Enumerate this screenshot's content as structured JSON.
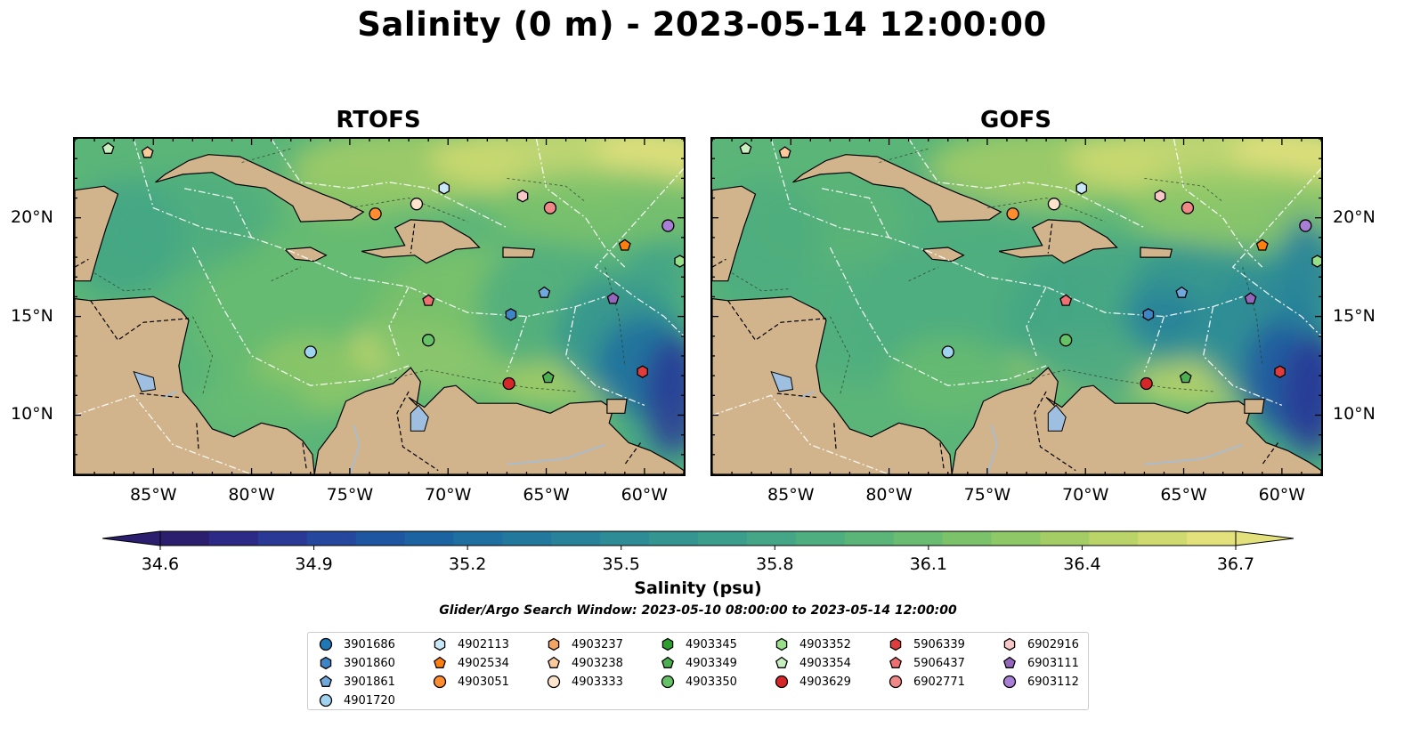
{
  "title": "Salinity (0 m) - 2023-05-14 12:00:00",
  "panels": [
    {
      "title": "RTOFS",
      "side": "left"
    },
    {
      "title": "GOFS",
      "side": "right"
    }
  ],
  "map": {
    "lon_range": [
      -89,
      -58
    ],
    "lat_range": [
      7,
      24
    ],
    "lat_ticks": [
      {
        "lat": 10,
        "label": "10°N"
      },
      {
        "lat": 15,
        "label": "15°N"
      },
      {
        "lat": 20,
        "label": "20°N"
      }
    ],
    "lon_ticks": [
      {
        "lon": -85,
        "label": "85°W"
      },
      {
        "lon": -80,
        "label": "80°W"
      },
      {
        "lon": -75,
        "label": "75°W"
      },
      {
        "lon": -70,
        "label": "70°W"
      },
      {
        "lon": -65,
        "label": "65°W"
      },
      {
        "lon": -60,
        "label": "60°W"
      }
    ],
    "land_color": "#d2b48c",
    "lake_color": "#9fbfe0"
  },
  "colorbar": {
    "label": "Salinity (psu)",
    "min": 34.6,
    "max": 36.7,
    "ticks": [
      "34.6",
      "34.9",
      "35.2",
      "35.5",
      "35.8",
      "36.1",
      "36.4",
      "36.7"
    ],
    "colors": [
      "#2b1e6e",
      "#2c2a86",
      "#2a3896",
      "#26479e",
      "#1f56a1",
      "#1c63a2",
      "#1f6fa0",
      "#23799d",
      "#28839a",
      "#2e8c96",
      "#349591",
      "#3b9e8c",
      "#44a686",
      "#4fae7f",
      "#5bb578",
      "#69bc71",
      "#7bc26b",
      "#8fc867",
      "#a4cd66",
      "#bad469",
      "#cfdb71",
      "#e2e17c"
    ],
    "extend": "both"
  },
  "search_window": "Glider/Argo Search Window: 2023-05-10 08:00:00 to 2023-05-14 12:00:00",
  "legend": {
    "columns": [
      [
        {
          "id": "3901686",
          "marker": "circle",
          "color": "#1f77b4"
        },
        {
          "id": "3901860",
          "marker": "hexagon",
          "color": "#3d85c6"
        },
        {
          "id": "3901861",
          "marker": "pentagon",
          "color": "#6fa8dc"
        },
        {
          "id": "4901720",
          "marker": "circle",
          "color": "#9fd3f0"
        }
      ],
      [
        {
          "id": "4902113",
          "marker": "hexagon",
          "color": "#c9e8f7"
        },
        {
          "id": "4902534",
          "marker": "pentagon",
          "color": "#ff7f0e"
        },
        {
          "id": "4903051",
          "marker": "circle",
          "color": "#ff8c2e"
        }
      ],
      [
        {
          "id": "4903237",
          "marker": "hexagon",
          "color": "#f4a460"
        },
        {
          "id": "4903238",
          "marker": "pentagon",
          "color": "#fcc99a"
        },
        {
          "id": "4903333",
          "marker": "circle",
          "color": "#fde4cc"
        }
      ],
      [
        {
          "id": "4903345",
          "marker": "hexagon",
          "color": "#2ca02c"
        },
        {
          "id": "4903349",
          "marker": "pentagon",
          "color": "#4caf50"
        },
        {
          "id": "4903350",
          "marker": "circle",
          "color": "#66c266"
        }
      ],
      [
        {
          "id": "4903352",
          "marker": "hexagon",
          "color": "#98df8a"
        },
        {
          "id": "4903354",
          "marker": "pentagon",
          "color": "#c9efc0"
        },
        {
          "id": "4903629",
          "marker": "circle",
          "color": "#d62728"
        }
      ],
      [
        {
          "id": "5906339",
          "marker": "hexagon",
          "color": "#e03c3c"
        },
        {
          "id": "5906437",
          "marker": "pentagon",
          "color": "#ef7070"
        },
        {
          "id": "6902771",
          "marker": "circle",
          "color": "#f08888"
        }
      ],
      [
        {
          "id": "6902916",
          "marker": "hexagon",
          "color": "#f8c7c7"
        },
        {
          "id": "6903111",
          "marker": "pentagon",
          "color": "#9467bd"
        },
        {
          "id": "6903112",
          "marker": "circle",
          "color": "#a97fd6"
        }
      ]
    ]
  },
  "floats": [
    {
      "id": "4903354",
      "lon": -87.3,
      "lat": 23.5
    },
    {
      "id": "4903238",
      "lon": -85.3,
      "lat": 23.3
    },
    {
      "id": "4903051",
      "lon": -73.7,
      "lat": 20.2
    },
    {
      "id": "4903333",
      "lon": -71.6,
      "lat": 20.7
    },
    {
      "id": "4902113",
      "lon": -70.2,
      "lat": 21.5
    },
    {
      "id": "6902916",
      "lon": -66.2,
      "lat": 21.1
    },
    {
      "id": "6902771",
      "lon": -64.8,
      "lat": 20.5
    },
    {
      "id": "6903112",
      "lon": -58.8,
      "lat": 19.6
    },
    {
      "id": "4902534",
      "lon": -61.0,
      "lat": 18.6
    },
    {
      "id": "4903352",
      "lon": -58.2,
      "lat": 17.8
    },
    {
      "id": "3901861",
      "lon": -65.1,
      "lat": 16.2
    },
    {
      "id": "6903111",
      "lon": -61.6,
      "lat": 15.9
    },
    {
      "id": "5906437",
      "lon": -71.0,
      "lat": 15.8
    },
    {
      "id": "3901860",
      "lon": -66.8,
      "lat": 15.1
    },
    {
      "id": "4903350",
      "lon": -71.0,
      "lat": 13.8
    },
    {
      "id": "4901720",
      "lon": -77.0,
      "lat": 13.2
    },
    {
      "id": "5906339",
      "lon": -60.1,
      "lat": 12.2
    },
    {
      "id": "4903349",
      "lon": -64.9,
      "lat": 11.9
    },
    {
      "id": "4903629",
      "lon": -66.9,
      "lat": 11.6
    }
  ]
}
